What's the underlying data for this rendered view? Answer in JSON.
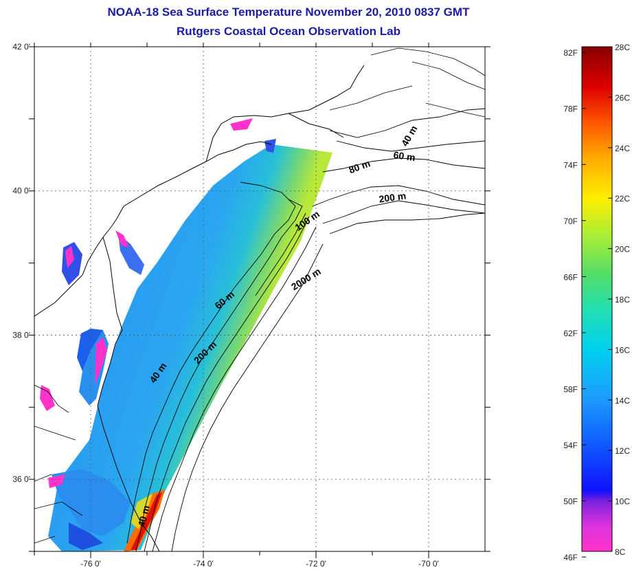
{
  "header": {
    "title": "NOAA-18 Sea Surface Temperature November 20, 2010 0837 GMT",
    "subtitle": "Rutgers Coastal Ocean Observation Lab"
  },
  "map": {
    "lon_range": [
      -77,
      -69
    ],
    "lat_range": [
      35,
      42
    ],
    "lon_ticks": [
      "-76 0'",
      "-74 0'",
      "-72 0'",
      "-70 0'"
    ],
    "lat_ticks": [
      "42 0'",
      "40 0'",
      "38 0'",
      "36 0'"
    ],
    "contour_labels": [
      "40 m",
      "60 m",
      "80 m",
      "100 m",
      "200 m",
      "2000 m",
      "60 m",
      "200 m",
      "40 m",
      "40 m"
    ]
  },
  "colorbar": {
    "fahrenheit_labels": [
      "82F",
      "78F",
      "74F",
      "70F",
      "66F",
      "62F",
      "58F",
      "54F",
      "50F",
      "46F"
    ],
    "celsius_labels": [
      "28C",
      "26C",
      "24C",
      "22C",
      "20C",
      "18C",
      "16C",
      "14C",
      "12C",
      "10C",
      "8C"
    ],
    "colors": [
      "#ff33cc",
      "#9a33dd",
      "#1010ff",
      "#1e90ff",
      "#00ccee",
      "#33dd88",
      "#aaee33",
      "#ffee00",
      "#ff9900",
      "#ff3300",
      "#cc0000",
      "#880000"
    ]
  }
}
